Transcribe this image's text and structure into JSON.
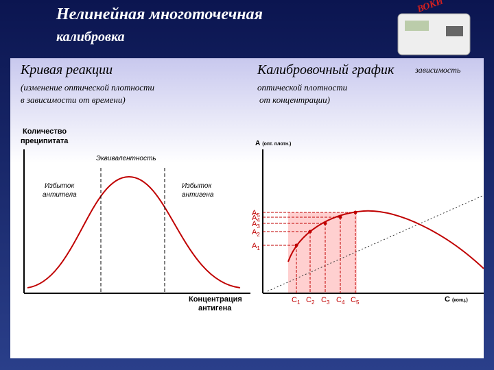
{
  "header": {
    "title_line1": "Нелинейная многоточечная",
    "title_line2": "калибровка",
    "badge": "ВОКИ"
  },
  "left": {
    "heading": "Кривая реакции",
    "subtitle_line1": "(изменение оптической плотности",
    "subtitle_line2": "в зависимости от времени)",
    "y_axis_line1": "Количество",
    "y_axis_line2": "преципитата",
    "equivalence": "Эквивалентность",
    "excess_antibody_line1": "Избыток",
    "excess_antibody_line2": "антитела",
    "excess_antigen_line1": "Избыток",
    "excess_antigen_line2": "антигена",
    "x_axis_line1": "Концентрация",
    "x_axis_line2": "антигена"
  },
  "right": {
    "heading": "Калибровочный график",
    "overlap_word": "зависимость",
    "subtitle_line1": "оптической плотности",
    "subtitle_line2": "от концентрации)",
    "y_axis": {
      "main": "A",
      "sub": "(опт. плотн.)"
    },
    "x_axis": {
      "main": "C",
      "sub": "(конц.)"
    },
    "a_labels": [
      {
        "main": "A",
        "sub": "5"
      },
      {
        "main": "A",
        "sub": "4"
      },
      {
        "main": "A",
        "sub": "3"
      },
      {
        "main": "A",
        "sub": "2"
      },
      {
        "main": "A",
        "sub": "1"
      }
    ],
    "c_labels": [
      {
        "main": "C",
        "sub": "1"
      },
      {
        "main": "C",
        "sub": "2"
      },
      {
        "main": "C",
        "sub": "3"
      },
      {
        "main": "C",
        "sub": "4"
      },
      {
        "main": "C",
        "sub": "5"
      }
    ]
  }
}
